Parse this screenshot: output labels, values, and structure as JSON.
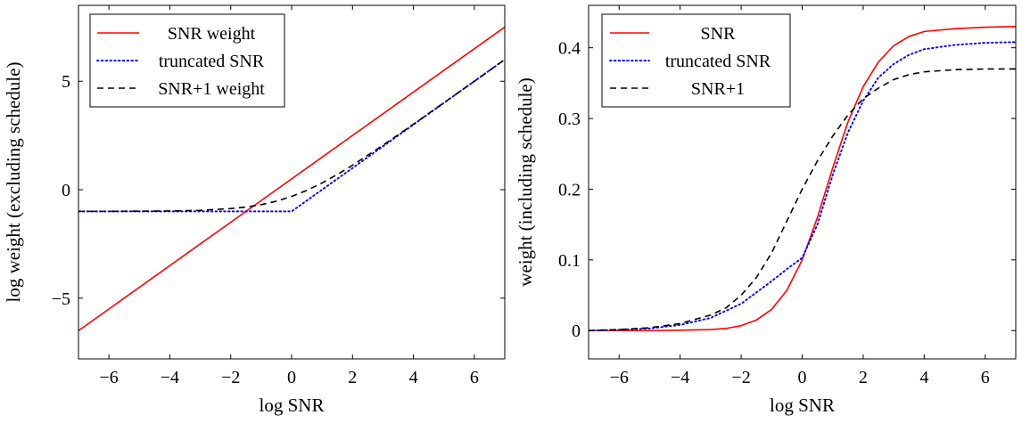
{
  "chart_data": [
    {
      "type": "line",
      "xlabel": "log SNR",
      "ylabel": "log weight (excluding schedule)",
      "xlim": [
        -7,
        7
      ],
      "ylim": [
        -7.8,
        8.5
      ],
      "xticks": [
        -6,
        -4,
        -2,
        0,
        2,
        4,
        6
      ],
      "xtick_labels": [
        "−6",
        "−4",
        "−2",
        "0",
        "2",
        "4",
        "6"
      ],
      "yticks": [
        -5,
        0,
        5
      ],
      "ytick_labels": [
        "−5",
        "0",
        "5"
      ],
      "legend_position": "top-left",
      "series": [
        {
          "name": "SNR weight",
          "color": "#ff0000",
          "dash": "solid",
          "x": [
            -7,
            7
          ],
          "y": [
            -6.5,
            7.5
          ]
        },
        {
          "name": "truncated SNR",
          "color": "#0000ff",
          "dash": "dotted",
          "x": [
            -7,
            -4,
            -2,
            -1,
            0,
            1,
            2,
            3,
            4,
            5,
            6,
            7
          ],
          "y": [
            -1.0,
            -1.0,
            -1.0,
            -1.0,
            -1.0,
            0.0,
            1.0,
            2.0,
            3.0,
            4.0,
            5.0,
            6.0
          ]
        },
        {
          "name": "SNR+1 weight",
          "color": "#000000",
          "dash": "dashed",
          "x": [
            -7,
            -6,
            -5,
            -4,
            -3,
            -2,
            -1.5,
            -1,
            -0.5,
            0,
            0.5,
            1,
            1.5,
            2,
            3,
            4,
            5,
            6,
            7
          ],
          "y": [
            -1.0,
            -1.0,
            -0.99,
            -0.98,
            -0.95,
            -0.87,
            -0.8,
            -0.69,
            -0.53,
            -0.31,
            -0.03,
            0.31,
            0.7,
            1.13,
            2.05,
            3.02,
            4.01,
            5.0,
            6.0
          ]
        }
      ]
    },
    {
      "type": "line",
      "xlabel": "log SNR",
      "ylabel": "weight (including schedule)",
      "xlim": [
        -7,
        7
      ],
      "ylim": [
        -0.04,
        0.46
      ],
      "xticks": [
        -6,
        -4,
        -2,
        0,
        2,
        4,
        6
      ],
      "xtick_labels": [
        "−6",
        "−4",
        "−2",
        "0",
        "2",
        "4",
        "6"
      ],
      "yticks": [
        0,
        0.1,
        0.2,
        0.3,
        0.4
      ],
      "ytick_labels": [
        "0",
        "0.1",
        "0.2",
        "0.3",
        "0.4"
      ],
      "legend_position": "top-left",
      "series": [
        {
          "name": "SNR",
          "color": "#ff0000",
          "dash": "solid",
          "x": [
            -7,
            -5,
            -4,
            -3,
            -2.5,
            -2,
            -1.5,
            -1,
            -0.5,
            0,
            0.5,
            1,
            1.5,
            2,
            2.5,
            3,
            3.5,
            4,
            5,
            6,
            7
          ],
          "y": [
            0.0,
            0.0,
            0.0005,
            0.0015,
            0.003,
            0.007,
            0.015,
            0.03,
            0.057,
            0.1,
            0.16,
            0.23,
            0.295,
            0.345,
            0.38,
            0.403,
            0.416,
            0.423,
            0.427,
            0.429,
            0.43
          ]
        },
        {
          "name": "truncated SNR",
          "color": "#0000ff",
          "dash": "dotted",
          "x": [
            -7,
            -6,
            -5,
            -4,
            -3,
            -2,
            -1.5,
            -1,
            -0.5,
            0,
            0.5,
            1,
            1.5,
            2,
            2.5,
            3,
            3.5,
            4,
            5,
            6,
            7
          ],
          "y": [
            0.0,
            0.0012,
            0.003,
            0.008,
            0.018,
            0.038,
            0.054,
            0.07,
            0.087,
            0.103,
            0.15,
            0.22,
            0.28,
            0.325,
            0.358,
            0.377,
            0.39,
            0.398,
            0.404,
            0.407,
            0.408
          ]
        },
        {
          "name": "SNR+1",
          "color": "#000000",
          "dash": "dashed",
          "x": [
            -7,
            -6,
            -5,
            -4,
            -3,
            -2.5,
            -2,
            -1.5,
            -1,
            -0.5,
            0,
            0.5,
            1,
            1.5,
            2,
            2.5,
            3,
            3.5,
            4,
            5,
            6,
            7
          ],
          "y": [
            0.0,
            0.0015,
            0.004,
            0.01,
            0.022,
            0.032,
            0.05,
            0.075,
            0.11,
            0.155,
            0.2,
            0.24,
            0.275,
            0.305,
            0.328,
            0.343,
            0.355,
            0.362,
            0.366,
            0.369,
            0.37,
            0.37
          ]
        }
      ]
    }
  ]
}
